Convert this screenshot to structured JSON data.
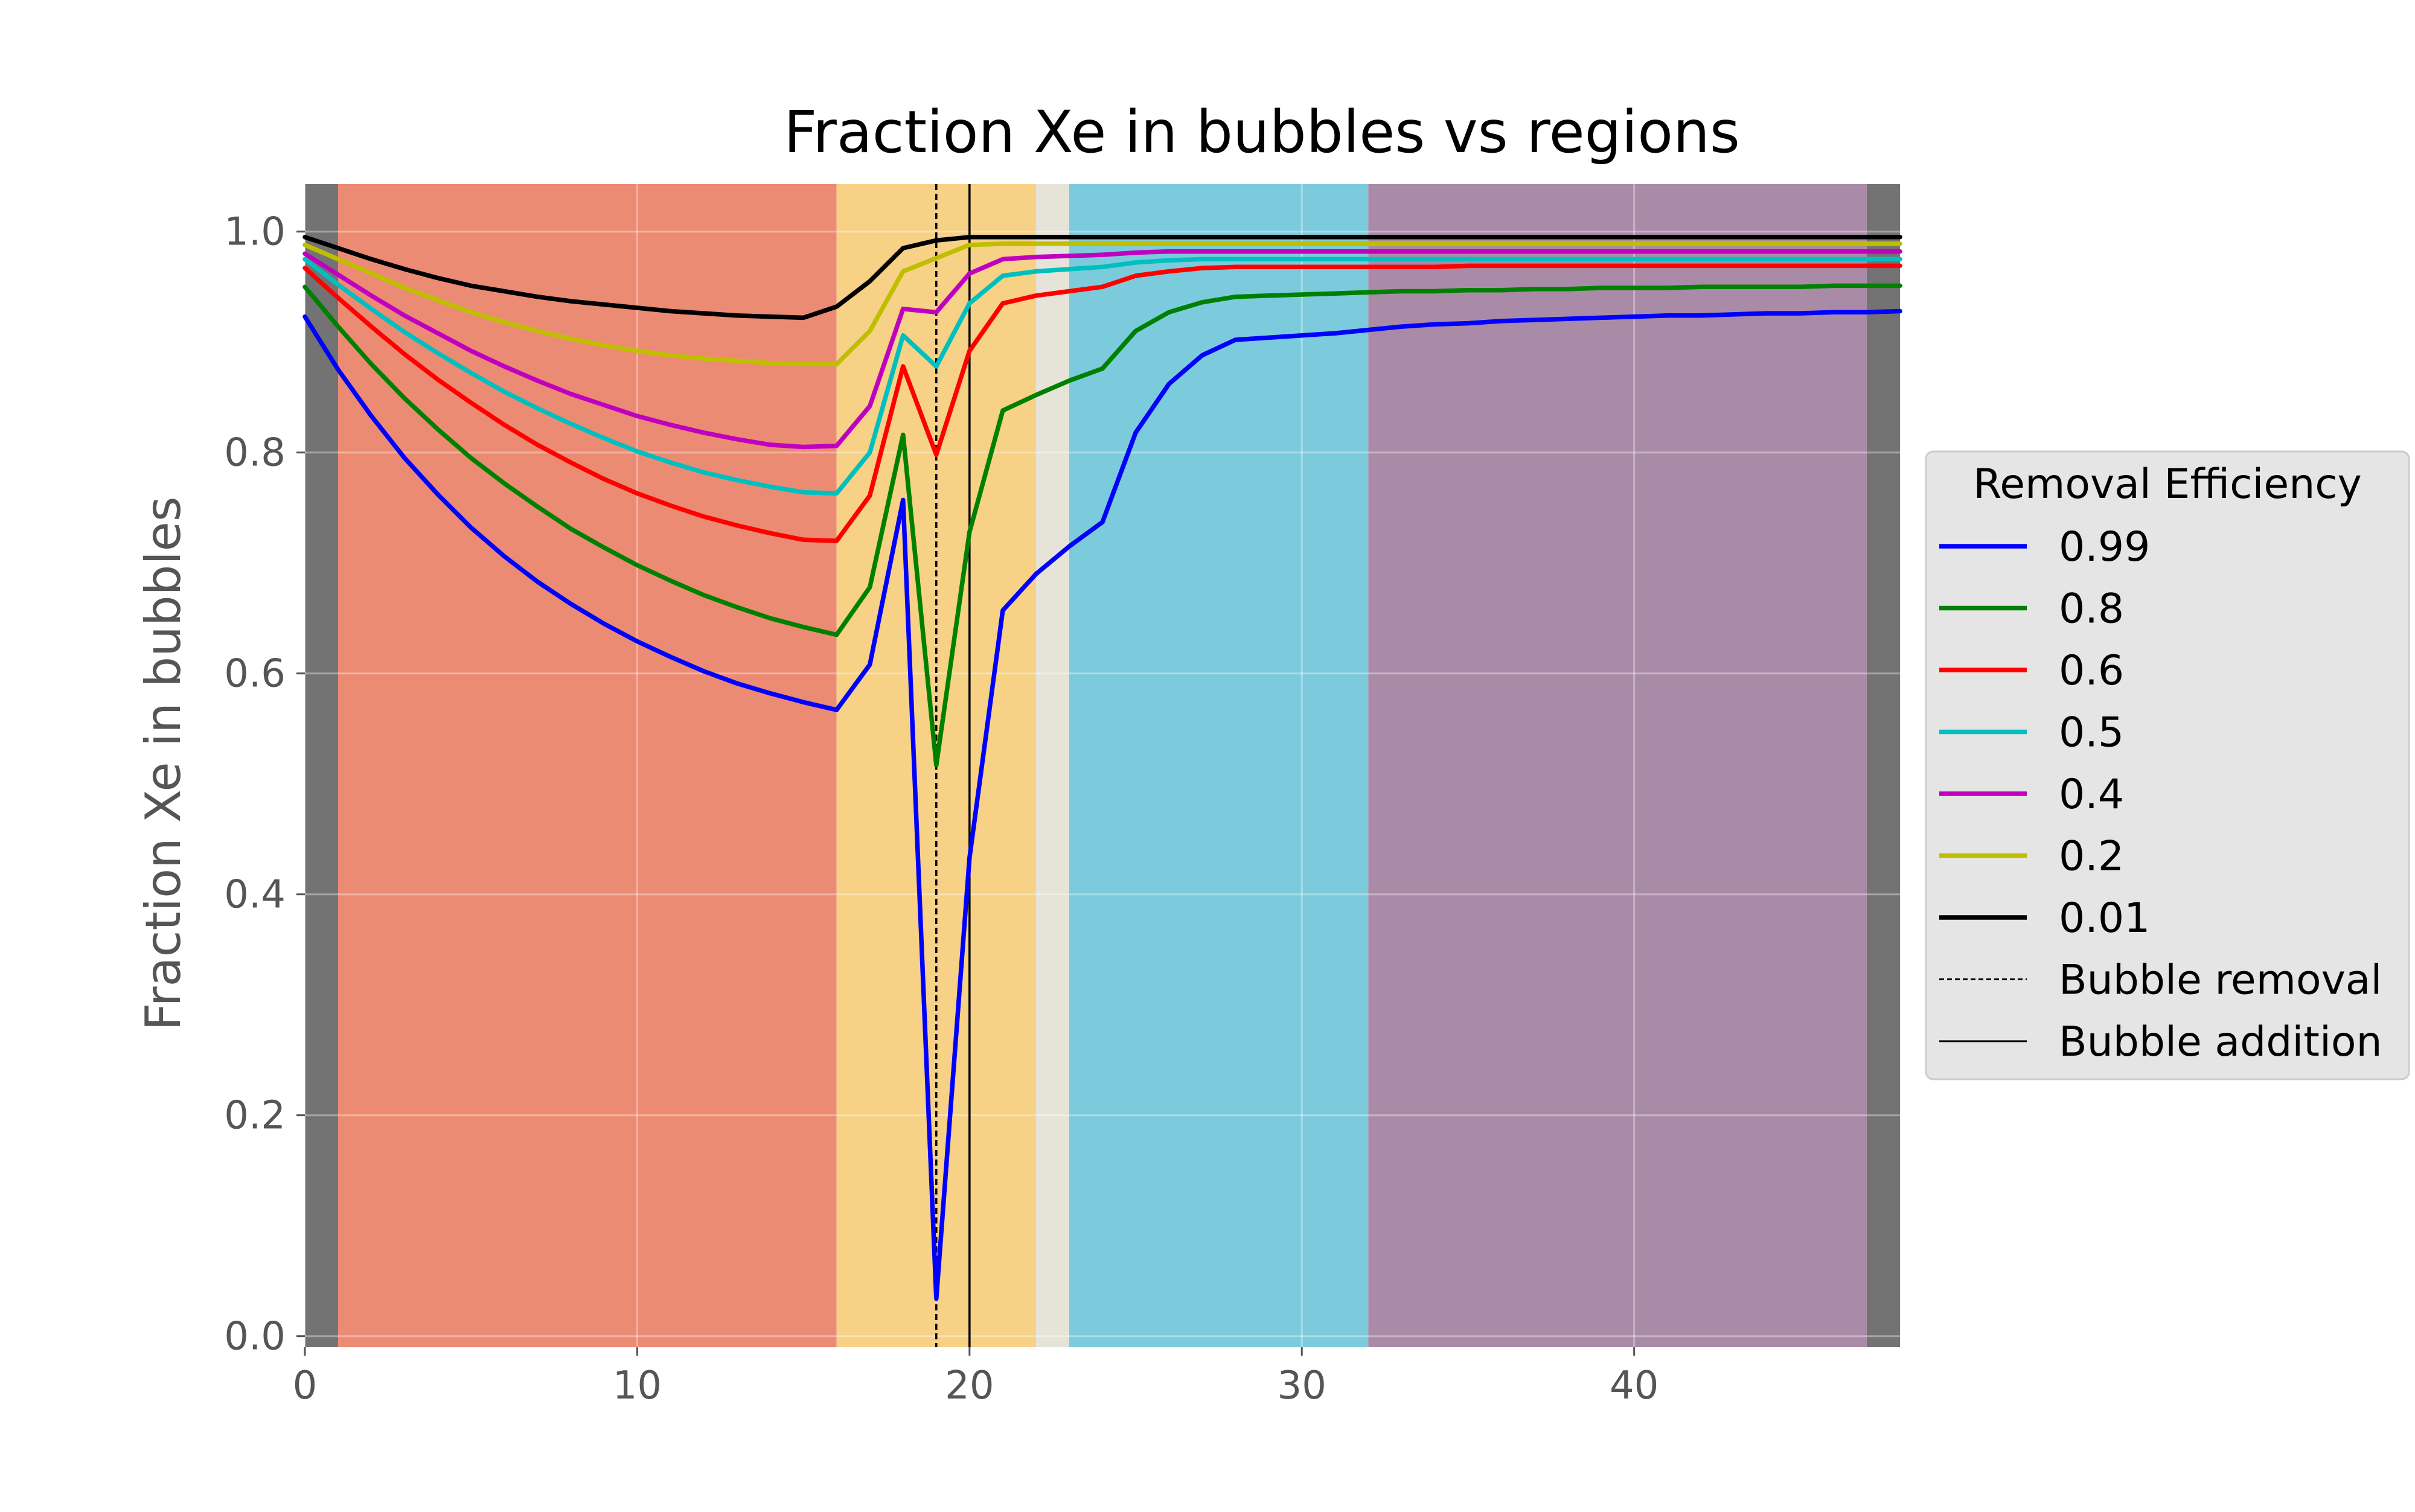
{
  "chart_data": {
    "type": "line",
    "title": "Fraction Xe in bubbles vs regions",
    "xlabel": "",
    "ylabel": "Fraction Xe in bubbles",
    "xlim": [
      0,
      48
    ],
    "ylim": [
      -0.01,
      1.043
    ],
    "xticks": [
      0,
      10,
      20,
      30,
      40
    ],
    "xtick_labels": [
      "0",
      "10",
      "20",
      "30",
      "40"
    ],
    "yticks": [
      0.0,
      0.2,
      0.4,
      0.6,
      0.8,
      1.0
    ],
    "ytick_labels": [
      "0.0",
      "0.2",
      "0.4",
      "0.6",
      "0.8",
      "1.0"
    ],
    "grid": true,
    "legend_position": "center-right-outside",
    "legend_title": "Removal Efficiency",
    "regions": [
      {
        "x0": 0,
        "x1": 1,
        "color": "#737373"
      },
      {
        "x0": 1,
        "x1": 16,
        "color": "#ec8b73"
      },
      {
        "x0": 16,
        "x1": 22,
        "color": "#f6d186"
      },
      {
        "x0": 22,
        "x1": 23,
        "color": "#e6e3d8"
      },
      {
        "x0": 23,
        "x1": 32,
        "color": "#7ccbdc"
      },
      {
        "x0": 32,
        "x1": 47,
        "color": "#aa8ba7"
      },
      {
        "x0": 47,
        "x1": 48,
        "color": "#737373"
      }
    ],
    "vlines": [
      {
        "x": 19,
        "name": "Bubble removal",
        "style": "dashed",
        "color": "#000000"
      },
      {
        "x": 20,
        "name": "Bubble addition",
        "style": "solid",
        "color": "#000000"
      }
    ],
    "x": [
      0,
      1,
      2,
      3,
      4,
      5,
      6,
      7,
      8,
      9,
      10,
      11,
      12,
      13,
      14,
      15,
      16,
      17,
      18,
      19,
      20,
      21,
      22,
      23,
      24,
      25,
      26,
      27,
      28,
      29,
      30,
      31,
      32,
      33,
      34,
      35,
      36,
      37,
      38,
      39,
      40,
      41,
      42,
      43,
      44,
      45,
      46,
      47,
      48
    ],
    "series": [
      {
        "name": "0.99",
        "color": "#0000ff",
        "values": [
          0.923,
          0.875,
          0.833,
          0.795,
          0.762,
          0.732,
          0.706,
          0.683,
          0.663,
          0.645,
          0.629,
          0.615,
          0.602,
          0.591,
          0.582,
          0.574,
          0.567,
          0.608,
          0.757,
          0.034,
          0.433,
          0.657,
          0.69,
          0.715,
          0.737,
          0.818,
          0.862,
          0.888,
          0.902,
          0.904,
          0.906,
          0.908,
          0.911,
          0.914,
          0.916,
          0.917,
          0.919,
          0.92,
          0.921,
          0.922,
          0.923,
          0.924,
          0.924,
          0.925,
          0.926,
          0.926,
          0.927,
          0.927,
          0.928
        ]
      },
      {
        "name": "0.8",
        "color": "#008000",
        "values": [
          0.95,
          0.914,
          0.88,
          0.849,
          0.821,
          0.795,
          0.772,
          0.751,
          0.731,
          0.714,
          0.698,
          0.684,
          0.671,
          0.66,
          0.65,
          0.642,
          0.635,
          0.678,
          0.816,
          0.517,
          0.728,
          0.838,
          0.852,
          0.865,
          0.876,
          0.91,
          0.927,
          0.936,
          0.941,
          0.942,
          0.943,
          0.944,
          0.945,
          0.946,
          0.946,
          0.947,
          0.947,
          0.948,
          0.948,
          0.949,
          0.949,
          0.949,
          0.95,
          0.95,
          0.95,
          0.95,
          0.951,
          0.951,
          0.951
        ]
      },
      {
        "name": "0.6",
        "color": "#ff0000",
        "values": [
          0.967,
          0.94,
          0.914,
          0.889,
          0.866,
          0.845,
          0.825,
          0.807,
          0.791,
          0.776,
          0.763,
          0.752,
          0.742,
          0.734,
          0.727,
          0.721,
          0.72,
          0.761,
          0.878,
          0.798,
          0.892,
          0.935,
          0.942,
          0.946,
          0.95,
          0.96,
          0.964,
          0.967,
          0.968,
          0.968,
          0.968,
          0.968,
          0.968,
          0.968,
          0.968,
          0.969,
          0.969,
          0.969,
          0.969,
          0.969,
          0.969,
          0.969,
          0.969,
          0.969,
          0.969,
          0.969,
          0.969,
          0.969,
          0.969
        ]
      },
      {
        "name": "0.5",
        "color": "#00bfbf",
        "values": [
          0.975,
          0.952,
          0.93,
          0.909,
          0.89,
          0.872,
          0.855,
          0.84,
          0.826,
          0.813,
          0.801,
          0.791,
          0.782,
          0.775,
          0.769,
          0.764,
          0.763,
          0.8,
          0.906,
          0.878,
          0.935,
          0.96,
          0.964,
          0.966,
          0.968,
          0.972,
          0.974,
          0.975,
          0.975,
          0.975,
          0.975,
          0.975,
          0.975,
          0.975,
          0.975,
          0.975,
          0.975,
          0.975,
          0.975,
          0.975,
          0.975,
          0.975,
          0.975,
          0.975,
          0.975,
          0.975,
          0.975,
          0.975,
          0.975
        ]
      },
      {
        "name": "0.4",
        "color": "#bf00bf",
        "values": [
          0.98,
          0.961,
          0.942,
          0.924,
          0.908,
          0.892,
          0.878,
          0.865,
          0.853,
          0.843,
          0.833,
          0.825,
          0.818,
          0.812,
          0.807,
          0.805,
          0.806,
          0.842,
          0.93,
          0.927,
          0.962,
          0.975,
          0.977,
          0.978,
          0.979,
          0.981,
          0.982,
          0.982,
          0.982,
          0.982,
          0.982,
          0.982,
          0.982,
          0.982,
          0.982,
          0.982,
          0.982,
          0.982,
          0.982,
          0.982,
          0.982,
          0.982,
          0.982,
          0.982,
          0.982,
          0.982,
          0.982,
          0.982,
          0.982
        ]
      },
      {
        "name": "0.2",
        "color": "#bfbf00",
        "values": [
          0.988,
          0.975,
          0.962,
          0.949,
          0.938,
          0.927,
          0.918,
          0.91,
          0.903,
          0.897,
          0.892,
          0.888,
          0.885,
          0.883,
          0.881,
          0.88,
          0.88,
          0.91,
          0.964,
          0.976,
          0.988,
          0.989,
          0.989,
          0.989,
          0.989,
          0.989,
          0.989,
          0.989,
          0.989,
          0.989,
          0.989,
          0.989,
          0.989,
          0.989,
          0.989,
          0.989,
          0.989,
          0.989,
          0.989,
          0.989,
          0.989,
          0.989,
          0.989,
          0.989,
          0.989,
          0.989,
          0.989,
          0.989,
          0.989
        ]
      },
      {
        "name": "0.01",
        "color": "#000000",
        "values": [
          0.995,
          0.985,
          0.975,
          0.966,
          0.958,
          0.951,
          0.946,
          0.941,
          0.937,
          0.934,
          0.931,
          0.928,
          0.926,
          0.924,
          0.923,
          0.922,
          0.932,
          0.955,
          0.985,
          0.992,
          0.995,
          0.995,
          0.995,
          0.995,
          0.995,
          0.995,
          0.995,
          0.995,
          0.995,
          0.995,
          0.995,
          0.995,
          0.995,
          0.995,
          0.995,
          0.995,
          0.995,
          0.995,
          0.995,
          0.995,
          0.995,
          0.995,
          0.995,
          0.995,
          0.995,
          0.995,
          0.995,
          0.995,
          0.995
        ]
      }
    ]
  }
}
